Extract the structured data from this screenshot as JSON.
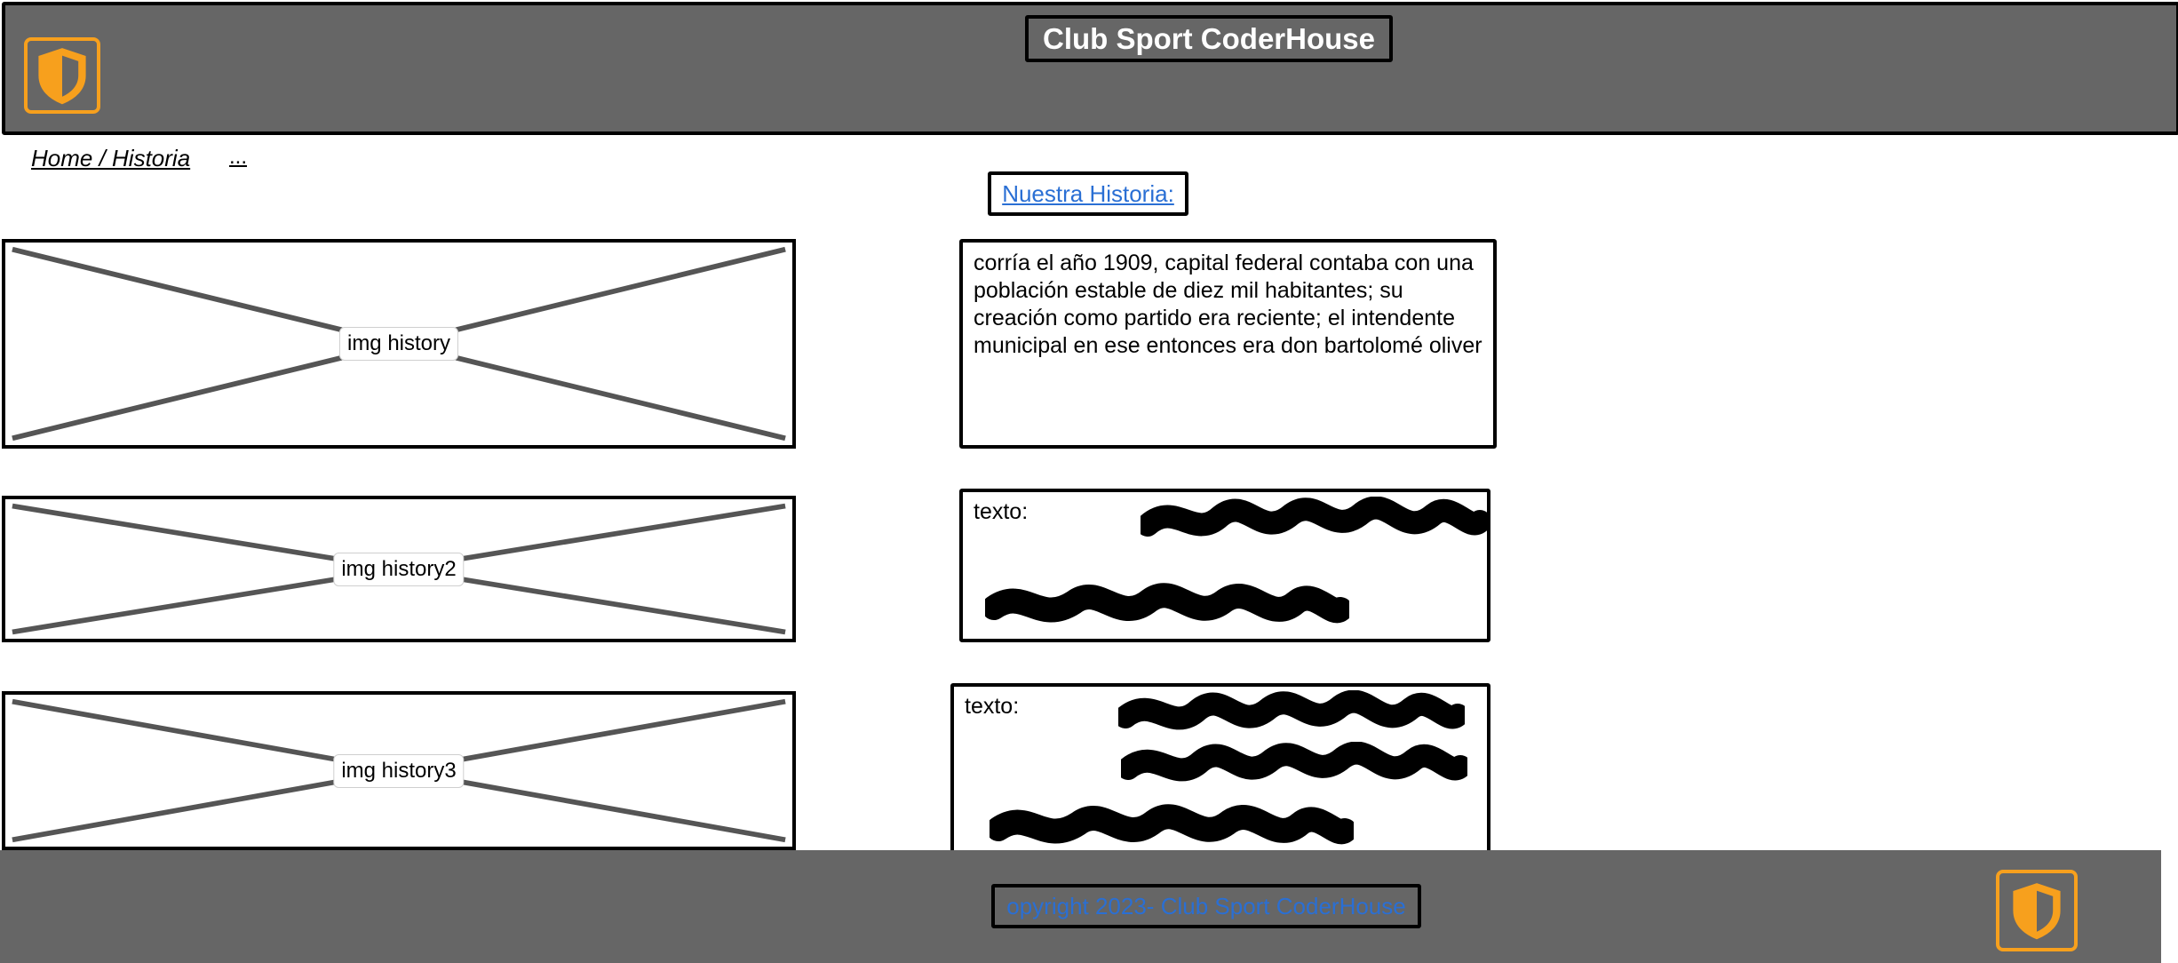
{
  "header": {
    "title": "Club Sport CoderHouse",
    "logo_icon": "shield-icon",
    "logo_color": "#f7a01d",
    "background": "#666666"
  },
  "breadcrumb": {
    "path": "Home / Historia",
    "more": "..."
  },
  "section": {
    "title_link": "Nuestra Historia:",
    "link_color": "#2a6fd4"
  },
  "rows": [
    {
      "image_label": "img history",
      "text": "corría el año 1909, capital federal contaba con una población estable de diez mil habitantes; su creación como partido era reciente; el intendente municipal en ese entonces era don bartolomé oliver"
    },
    {
      "image_label": "img history2",
      "text_label": "texto:"
    },
    {
      "image_label": "img history3",
      "text_label": "texto:"
    }
  ],
  "footer": {
    "copyright": "opyright 2023- Club Sport CoderHouse",
    "logo_icon": "shield-icon"
  }
}
